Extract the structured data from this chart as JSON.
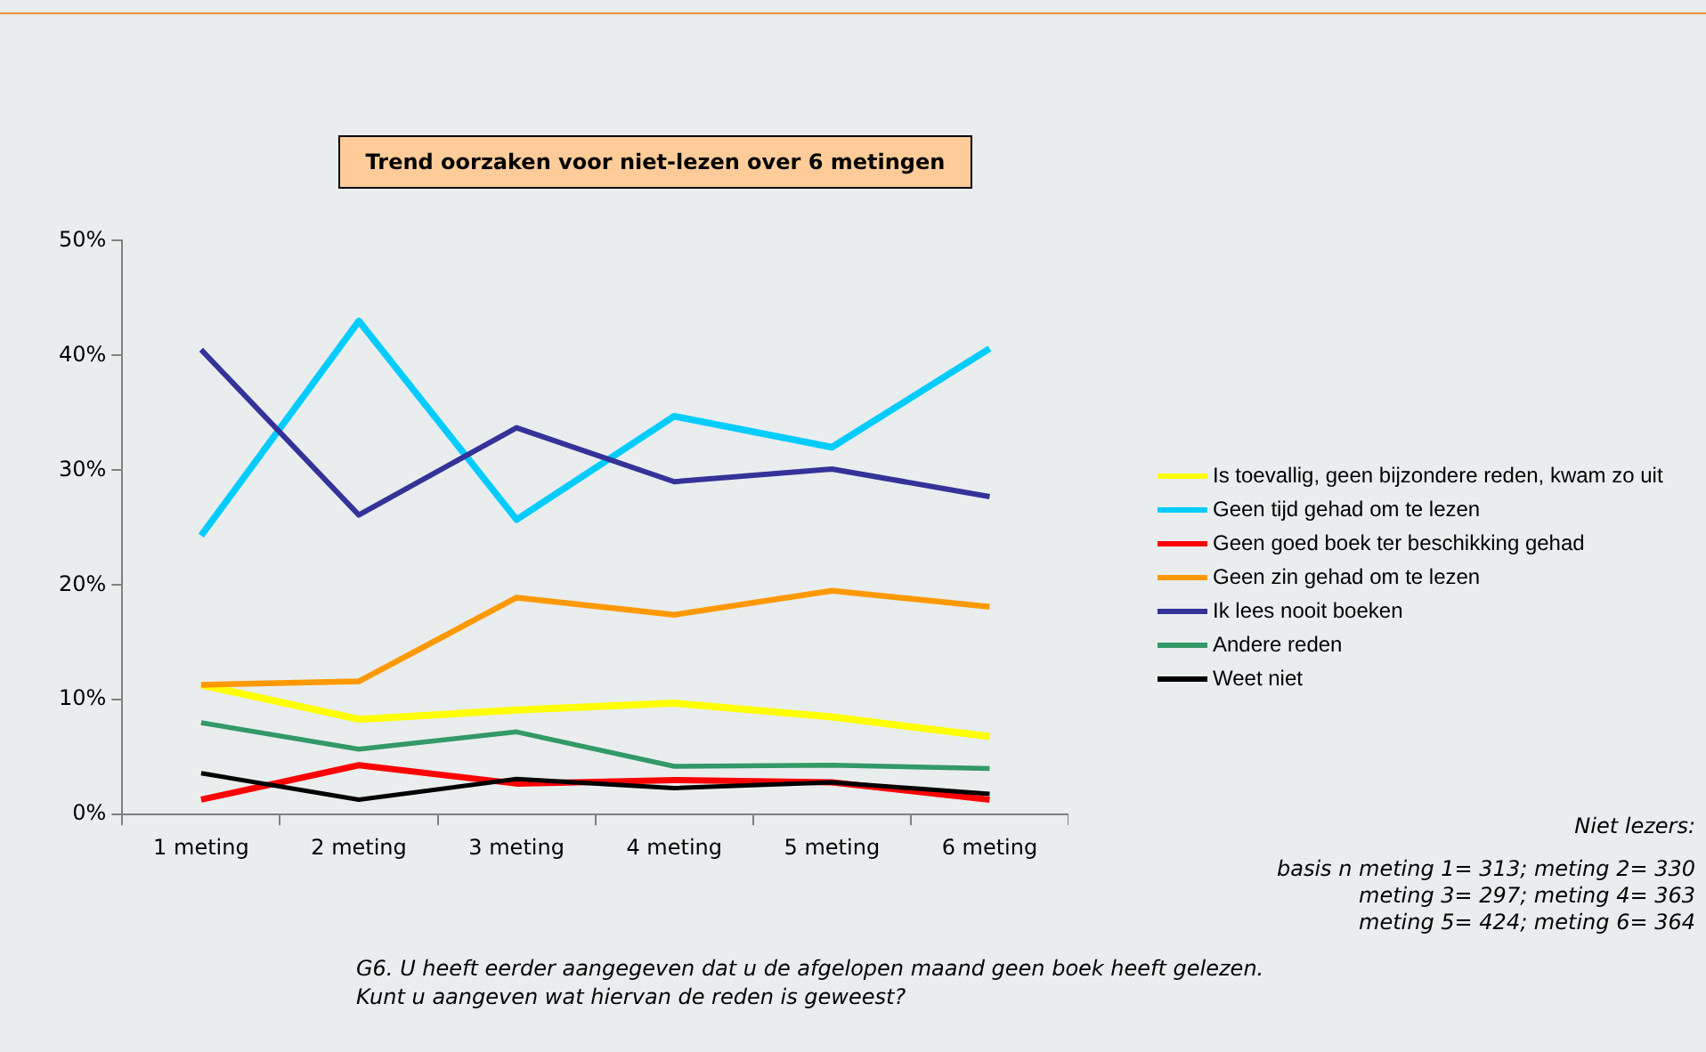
{
  "chart_data": {
    "type": "line",
    "title": "Trend oorzaken voor niet-lezen over 6 metingen",
    "categories": [
      "1 meting",
      "2 meting",
      "3 meting",
      "4 meting",
      "5 meting",
      "6 meting"
    ],
    "series": [
      {
        "name": "Is toevallig, geen bijzondere reden, kwam zo uit",
        "color": "#ffff00",
        "values": [
          11.3,
          8.3,
          9.1,
          9.7,
          8.5,
          6.8
        ]
      },
      {
        "name": "Geen tijd gehad om te lezen",
        "color": "#00ccff",
        "values": [
          24.3,
          43.0,
          25.7,
          34.7,
          32.0,
          40.6
        ]
      },
      {
        "name": "Geen goed boek ter beschikking gehad",
        "color": "#ff0000",
        "values": [
          1.3,
          4.3,
          2.7,
          3.0,
          2.8,
          1.3
        ]
      },
      {
        "name": "Geen zin gehad om te lezen",
        "color": "#ff9900",
        "values": [
          11.3,
          11.6,
          18.9,
          17.4,
          19.5,
          18.1
        ]
      },
      {
        "name": "Ik lees nooit boeken",
        "color": "#333399",
        "values": [
          40.5,
          26.1,
          33.7,
          29.0,
          30.1,
          27.7
        ]
      },
      {
        "name": "Andere reden",
        "color": "#339966",
        "values": [
          8.0,
          5.7,
          7.2,
          4.2,
          4.3,
          4.0
        ]
      },
      {
        "name": "Weet niet",
        "color": "#000000",
        "values": [
          3.6,
          1.3,
          3.1,
          2.3,
          2.8,
          1.8
        ]
      }
    ],
    "ylim": [
      0,
      50
    ],
    "yticks": [
      {
        "value": 0,
        "label": "0%"
      },
      {
        "value": 10,
        "label": "10%"
      },
      {
        "value": 20,
        "label": "20%"
      },
      {
        "value": 30,
        "label": "30%"
      },
      {
        "value": 40,
        "label": "40%"
      },
      {
        "value": 50,
        "label": "50%"
      }
    ],
    "grid": false,
    "legend": "right",
    "marker": "none",
    "line_style": "solid",
    "annotations": [
      "Niet lezers:",
      "basis n meting 1= 313; meting 2= 330",
      "meting 3= 297; meting 4= 363",
      "meting 5= 424; meting 6= 364",
      "G6. U heeft eerder aangegeven dat u de afgelopen maand geen boek heeft gelezen.\nKunt u aangeven wat hiervan de reden is geweest?"
    ]
  }
}
